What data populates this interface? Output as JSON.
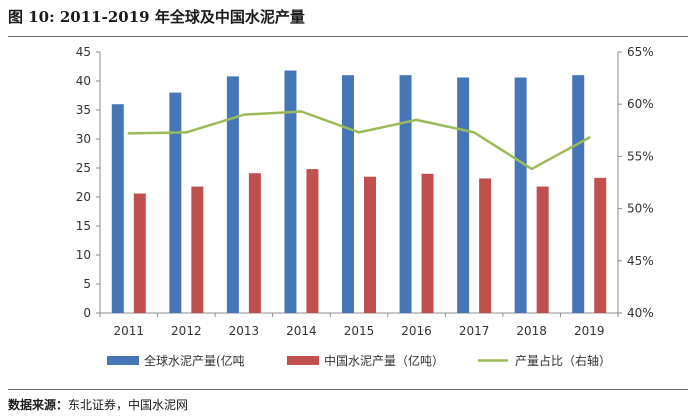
{
  "figure": {
    "label": "图 10:",
    "title": "2011-2019 年全球及中国水泥产量"
  },
  "source": {
    "label": "数据来源：",
    "text": "东北证券，中国水泥网"
  },
  "chart_data": {
    "type": "bar",
    "categories": [
      "2011",
      "2012",
      "2013",
      "2014",
      "2015",
      "2016",
      "2017",
      "2018",
      "2019"
    ],
    "series": [
      {
        "name": "全球水泥产量(亿吨",
        "kind": "bar",
        "axis": "left",
        "color": "#4676b8",
        "values": [
          36.0,
          38.0,
          40.8,
          41.8,
          41.0,
          41.0,
          40.6,
          40.6,
          41.0
        ]
      },
      {
        "name": "中国水泥产量（亿吨）",
        "kind": "bar",
        "axis": "left",
        "color": "#c0504d",
        "values": [
          20.6,
          21.8,
          24.1,
          24.8,
          23.5,
          24.0,
          23.2,
          21.8,
          23.3
        ]
      },
      {
        "name": "产量占比（右轴）",
        "kind": "line",
        "axis": "right",
        "color": "#9bbb59",
        "values": [
          0.572,
          0.573,
          0.59,
          0.593,
          0.573,
          0.585,
          0.573,
          0.538,
          0.568
        ]
      }
    ],
    "y_left": {
      "lim": [
        0,
        45
      ],
      "ticks": [
        "0",
        "5",
        "10",
        "15",
        "20",
        "25",
        "30",
        "35",
        "40",
        "45"
      ]
    },
    "y_right": {
      "lim": [
        0.4,
        0.65
      ],
      "ticks": [
        "40%",
        "45%",
        "50%",
        "55%",
        "60%",
        "65%"
      ]
    },
    "grid": false,
    "legend_position": "bottom"
  }
}
